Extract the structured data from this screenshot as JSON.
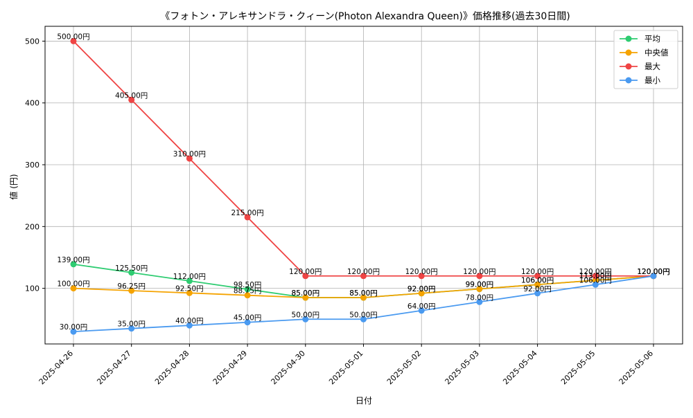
{
  "chart_data": {
    "type": "line",
    "title": "《フォトン・アレキサンドラ・クィーン(Photon Alexandra Queen)》価格推移(過去30日間)",
    "xlabel": "日付",
    "ylabel": "値 (円)",
    "categories": [
      "2025-04-26",
      "2025-04-27",
      "2025-04-28",
      "2025-04-29",
      "2025-04-30",
      "2025-05-01",
      "2025-05-02",
      "2025-05-03",
      "2025-05-04",
      "2025-05-05",
      "2025-05-06"
    ],
    "yticks": [
      100,
      200,
      300,
      400,
      500
    ],
    "ylim": [
      10,
      524
    ],
    "grid": true,
    "legend_position": "top-right",
    "value_suffix": "円",
    "series": [
      {
        "name": "平均",
        "color": "#2ecc71",
        "values": [
          139.0,
          125.5,
          112.0,
          98.5,
          85.0,
          85.0,
          92.0,
          99.0,
          106.0,
          113.0,
          120.0
        ]
      },
      {
        "name": "中央値",
        "color": "#f5a300",
        "values": [
          100.0,
          96.25,
          92.5,
          88.75,
          85.0,
          85.0,
          92.0,
          99.0,
          106.0,
          113.0,
          120.0
        ]
      },
      {
        "name": "最大",
        "color": "#ef4444",
        "values": [
          500.0,
          405.0,
          310.0,
          215.0,
          120.0,
          120.0,
          120.0,
          120.0,
          120.0,
          120.0,
          120.0
        ]
      },
      {
        "name": "最小",
        "color": "#4a9af0",
        "values": [
          30.0,
          35.0,
          40.0,
          45.0,
          50.0,
          50.0,
          64.0,
          78.0,
          92.0,
          106.0,
          120.0
        ]
      }
    ]
  }
}
